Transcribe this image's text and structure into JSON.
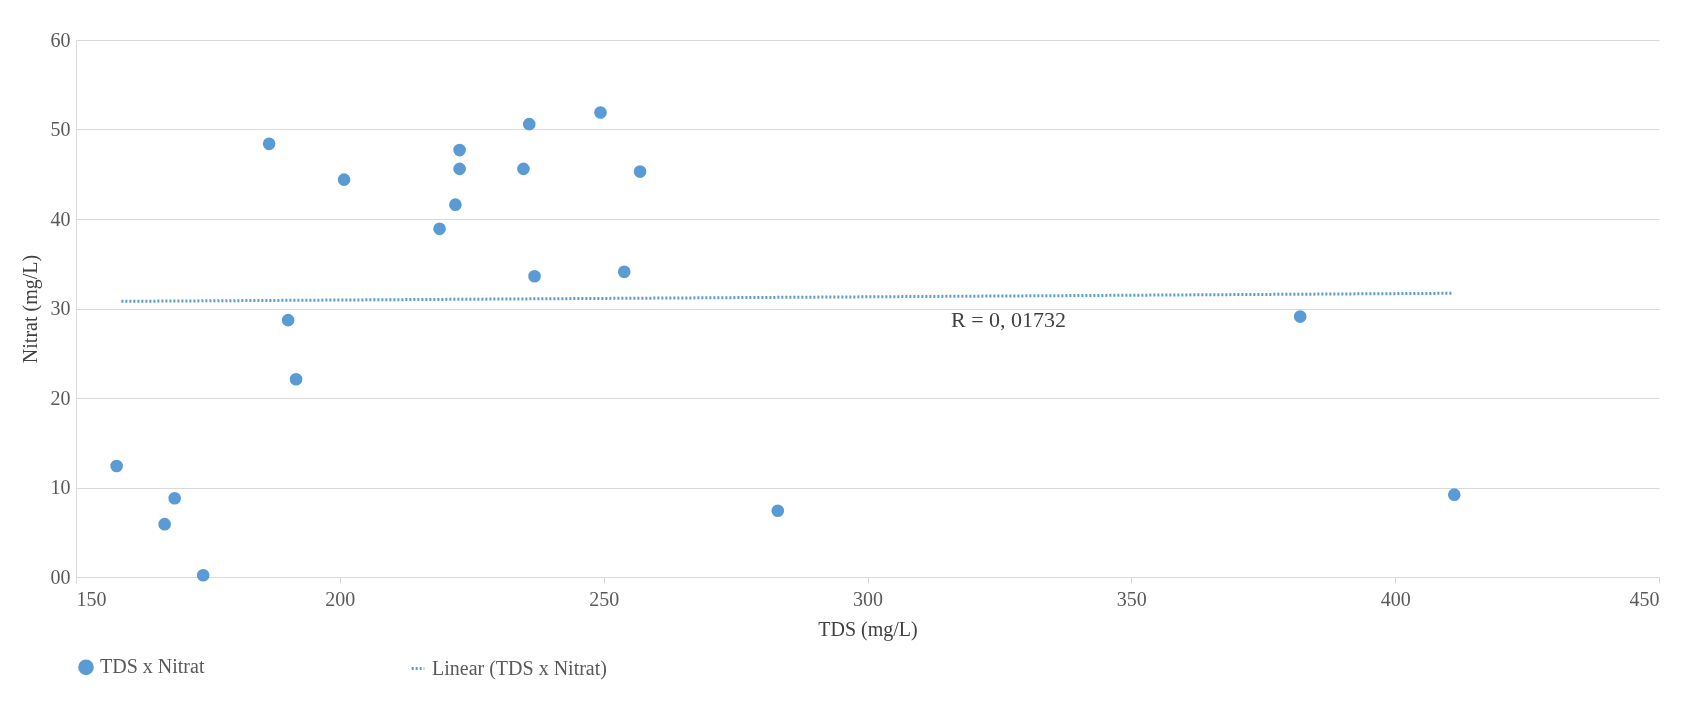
{
  "chart_data": {
    "type": "scatter",
    "xlabel": "TDS (mg/L)",
    "ylabel": "Nitrat (mg/L)",
    "series": [
      {
        "name": "TDS x Nitrat",
        "marker": "circle",
        "color": "#5b9bd5",
        "x": [
          157.7,
          168.7,
          166.8,
          174.1,
          186.6,
          190.2,
          191.7,
          200.8,
          218.9,
          221.9,
          222.7,
          222.7,
          234.8,
          235.9,
          236.9,
          249.4,
          253.9,
          256.9,
          283.0,
          382.0,
          411.2
        ],
        "values": [
          12.4,
          8.8,
          5.9,
          0.2,
          48.4,
          28.7,
          22.1,
          44.4,
          38.9,
          41.6,
          47.7,
          45.6,
          45.6,
          50.6,
          33.6,
          51.9,
          34.1,
          45.3,
          7.4,
          29.1,
          9.2
        ]
      },
      {
        "name": "Linear (TDS x Nitrat)",
        "type": "line",
        "color": "#5b9bd5",
        "line_style": "dotted",
        "x": [
          158.6,
          410.8
        ],
        "values": [
          30.8,
          31.7
        ]
      }
    ],
    "xlim": [
      150,
      450
    ],
    "xticks": [
      150,
      200,
      250,
      300,
      350,
      400,
      450
    ],
    "ylim": [
      0,
      60
    ],
    "yticks": [
      {
        "value": 0,
        "label": "00"
      },
      10,
      20,
      30,
      40,
      50,
      60
    ],
    "grid": "y",
    "legend": "bottom",
    "annotations": [
      "R = 0, 01732"
    ]
  }
}
